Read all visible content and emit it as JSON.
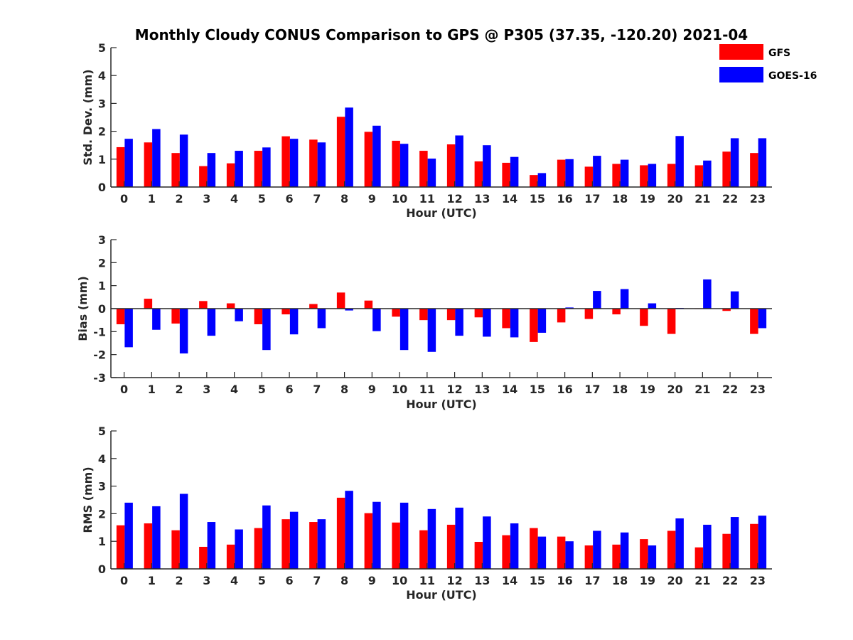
{
  "title": "Monthly Cloudy CONUS Comparison to GPS @ P305 (37.35, -120.20) 2021-04",
  "legend": {
    "placement": "top-right",
    "entries": [
      {
        "label": "GFS",
        "color": "#ff0000"
      },
      {
        "label": "GOES-16",
        "color": "#0000ff"
      }
    ]
  },
  "chart_data": [
    {
      "type": "bar",
      "title": "",
      "xlabel": "Hour (UTC)",
      "ylabel": "Std. Dev. (mm)",
      "ylim": [
        0,
        5
      ],
      "yticks": [
        0,
        1,
        2,
        3,
        4,
        5
      ],
      "categories": [
        "0",
        "1",
        "2",
        "3",
        "4",
        "5",
        "6",
        "7",
        "8",
        "9",
        "10",
        "11",
        "12",
        "13",
        "14",
        "15",
        "16",
        "17",
        "18",
        "19",
        "20",
        "21",
        "22",
        "23"
      ],
      "series": [
        {
          "name": "GFS",
          "color": "#ff0000",
          "values": [
            1.43,
            1.6,
            1.22,
            0.75,
            0.85,
            1.3,
            1.82,
            1.7,
            2.52,
            1.98,
            1.66,
            1.3,
            1.53,
            0.92,
            0.87,
            0.43,
            0.98,
            0.73,
            0.83,
            0.78,
            0.83,
            0.78,
            1.27,
            1.22
          ]
        },
        {
          "name": "GOES-16",
          "color": "#0000ff",
          "values": [
            1.73,
            2.08,
            1.88,
            1.22,
            1.3,
            1.42,
            1.73,
            1.6,
            2.85,
            2.2,
            1.55,
            1.02,
            1.85,
            1.5,
            1.08,
            0.5,
            1.0,
            1.12,
            0.98,
            0.83,
            1.83,
            0.95,
            1.75,
            1.75
          ]
        }
      ]
    },
    {
      "type": "bar",
      "title": "",
      "xlabel": "Hour (UTC)",
      "ylabel": "Bias (mm)",
      "ylim": [
        -3,
        3
      ],
      "yticks": [
        -3,
        -2,
        -1,
        0,
        1,
        2,
        3
      ],
      "categories": [
        "0",
        "1",
        "2",
        "3",
        "4",
        "5",
        "6",
        "7",
        "8",
        "9",
        "10",
        "11",
        "12",
        "13",
        "14",
        "15",
        "16",
        "17",
        "18",
        "19",
        "20",
        "21",
        "22",
        "23"
      ],
      "series": [
        {
          "name": "GFS",
          "color": "#ff0000",
          "values": [
            -0.68,
            0.43,
            -0.65,
            0.33,
            0.23,
            -0.68,
            -0.25,
            0.2,
            0.7,
            0.35,
            -0.35,
            -0.5,
            -0.5,
            -0.38,
            -0.85,
            -1.45,
            -0.6,
            -0.45,
            -0.25,
            -0.75,
            -1.1,
            0.0,
            -0.1,
            -1.1
          ]
        },
        {
          "name": "GOES-16",
          "color": "#0000ff",
          "values": [
            -1.68,
            -0.92,
            -1.95,
            -1.18,
            -0.55,
            -1.8,
            -1.12,
            -0.85,
            -0.08,
            -0.98,
            -1.8,
            -1.88,
            -1.18,
            -1.22,
            -1.25,
            -1.05,
            0.05,
            0.77,
            0.85,
            0.23,
            0.03,
            1.27,
            0.75,
            -0.85
          ]
        }
      ]
    },
    {
      "type": "bar",
      "title": "",
      "xlabel": "Hour (UTC)",
      "ylabel": "RMS (mm)",
      "ylim": [
        0,
        5
      ],
      "yticks": [
        0,
        1,
        2,
        3,
        4,
        5
      ],
      "categories": [
        "0",
        "1",
        "2",
        "3",
        "4",
        "5",
        "6",
        "7",
        "8",
        "9",
        "10",
        "11",
        "12",
        "13",
        "14",
        "15",
        "16",
        "17",
        "18",
        "19",
        "20",
        "21",
        "22",
        "23"
      ],
      "series": [
        {
          "name": "GFS",
          "color": "#ff0000",
          "values": [
            1.58,
            1.65,
            1.4,
            0.8,
            0.88,
            1.48,
            1.8,
            1.7,
            2.58,
            2.02,
            1.68,
            1.4,
            1.6,
            0.98,
            1.22,
            1.48,
            1.17,
            0.85,
            0.88,
            1.08,
            1.38,
            0.78,
            1.27,
            1.63
          ]
        },
        {
          "name": "GOES-16",
          "color": "#0000ff",
          "values": [
            2.4,
            2.27,
            2.72,
            1.7,
            1.43,
            2.3,
            2.07,
            1.8,
            2.83,
            2.43,
            2.4,
            2.17,
            2.22,
            1.9,
            1.65,
            1.17,
            1.0,
            1.38,
            1.32,
            0.85,
            1.83,
            1.6,
            1.88,
            1.93
          ]
        }
      ]
    }
  ]
}
